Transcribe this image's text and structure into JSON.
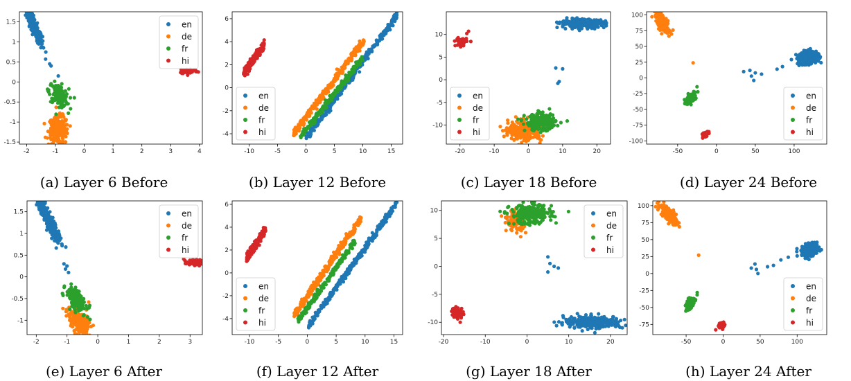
{
  "colors": {
    "en": "#1f77b4",
    "de": "#ff7f0e",
    "fr": "#2ca02c",
    "hi": "#d62728"
  },
  "chart_data": [
    {
      "type": "scatter",
      "title": "(a) Layer 6 Before",
      "xlim": [
        -2.25,
        4.1
      ],
      "ylim": [
        -1.55,
        1.75
      ],
      "xticks": [
        -2,
        -1,
        0,
        1,
        2,
        3,
        4
      ],
      "yticks": [
        -1.5,
        -1.0,
        -0.5,
        0.0,
        0.5,
        1.0,
        1.5
      ],
      "legend_position": "top-right",
      "legend": [
        "en",
        "de",
        "fr",
        "hi"
      ],
      "series": [
        {
          "name": "en",
          "clusters": [
            [
              -1.75,
              1.4,
              0.15,
              0.25,
              260,
              -0.9
            ]
          ],
          "points": [
            [
              -1.2,
              0.45
            ],
            [
              -1.15,
              0.4
            ],
            [
              -0.9,
              0.15
            ]
          ]
        },
        {
          "name": "de",
          "clusters": [
            [
              -0.9,
              -1.22,
              0.17,
              0.18,
              220,
              0
            ]
          ],
          "points": []
        },
        {
          "name": "fr",
          "clusters": [
            [
              -0.88,
              -0.32,
              0.17,
              0.14,
              130,
              -0.4
            ]
          ],
          "points": [
            [
              -0.55,
              -0.78
            ]
          ]
        },
        {
          "name": "hi",
          "clusters": [
            [
              3.62,
              0.27,
              0.16,
              0.035,
              60,
              0
            ]
          ],
          "points": []
        }
      ]
    },
    {
      "type": "scatter",
      "title": "(b) Layer 12 Before",
      "xlim": [
        -13,
        17
      ],
      "ylim": [
        -4.9,
        6.6
      ],
      "xticks": [
        -10,
        -5,
        0,
        5,
        10,
        15
      ],
      "yticks": [
        -4,
        -2,
        0,
        2,
        4,
        6
      ],
      "legend_position": "bottom-left",
      "legend": [
        "en",
        "de",
        "fr",
        "hi"
      ],
      "series": [
        {
          "name": "en",
          "lines": [
            [
              0,
              -4.4,
              16,
              6.3,
              0.15,
              320
            ]
          ],
          "points": []
        },
        {
          "name": "de",
          "lines": [
            [
              -2.2,
              -4.0,
              10.3,
              4.2,
              0.17,
              320
            ]
          ],
          "points": []
        },
        {
          "name": "fr",
          "lines": [
            [
              -1.0,
              -4.3,
              10.0,
              2.6,
              0.13,
              260
            ]
          ],
          "points": []
        },
        {
          "name": "hi",
          "lines": [
            [
              -11,
              1.2,
              -7.3,
              3.8,
              0.2,
              170
            ]
          ],
          "points": []
        }
      ]
    },
    {
      "type": "scatter",
      "title": "(c) Layer 18 Before",
      "xlim": [
        -24,
        24
      ],
      "ylim": [
        -14.2,
        15
      ],
      "xticks": [
        -20,
        -10,
        0,
        10,
        20
      ],
      "yticks": [
        -10,
        -5,
        0,
        5,
        10
      ],
      "legend_position": "bottom-left",
      "legend": [
        "en",
        "de",
        "fr",
        "hi"
      ],
      "series": [
        {
          "name": "en",
          "clusters": [
            [
              16,
              12.4,
              3.2,
              0.45,
              280,
              0.05
            ]
          ],
          "points": [
            [
              8,
              2.6
            ],
            [
              10,
              2.4
            ],
            [
              8.6,
              -0.8
            ],
            [
              9,
              -0.4
            ]
          ]
        },
        {
          "name": "de",
          "clusters": [
            [
              -1,
              -11.3,
              2.4,
              1.1,
              240,
              0
            ]
          ],
          "points": []
        },
        {
          "name": "fr",
          "clusters": [
            [
              3.5,
              -9.4,
              2.2,
              0.9,
              230,
              0
            ]
          ],
          "points": []
        },
        {
          "name": "hi",
          "clusters": [
            [
              -19.7,
              8.4,
              0.8,
              0.5,
              60,
              0
            ]
          ],
          "points": [
            [
              -17.5,
              10.7
            ],
            [
              -18,
              10.2
            ]
          ]
        }
      ]
    },
    {
      "type": "scatter",
      "title": "(d) Layer 24 Before",
      "xlim": [
        -90,
        142
      ],
      "ylim": [
        -105,
        105
      ],
      "xticks": [
        -50,
        0,
        50,
        100
      ],
      "yticks": [
        -100,
        -75,
        -50,
        -25,
        0,
        25,
        50,
        75,
        100
      ],
      "legend_position": "bottom-right",
      "legend": [
        "en",
        "de",
        "fr",
        "hi"
      ],
      "series": [
        {
          "name": "en",
          "clusters": [
            [
              118,
              32,
              7,
              5.5,
              240,
              0.25
            ]
          ],
          "points": [
            [
              35,
              10
            ],
            [
              43,
              12
            ],
            [
              50,
              8
            ],
            [
              58,
              6
            ],
            [
              45,
              3
            ],
            [
              48,
              -4
            ],
            [
              78,
              14
            ],
            [
              85,
              18
            ]
          ]
        },
        {
          "name": "de",
          "clusters": [
            [
              -69,
              85,
              4.5,
              8,
              170,
              -0.7
            ]
          ],
          "points": [
            [
              -56,
              76
            ],
            [
              -30,
              24
            ]
          ]
        },
        {
          "name": "fr",
          "clusters": [
            [
              -33,
              -32,
              3,
              4,
              100,
              0.4
            ]
          ],
          "points": [
            [
              -25,
              -14
            ],
            [
              -24,
              -22
            ]
          ]
        },
        {
          "name": "hi",
          "clusters": [
            [
              -15,
              -89,
              2,
              3,
              40,
              0.5
            ]
          ],
          "points": []
        }
      ]
    },
    {
      "type": "scatter",
      "title": "(e) Layer 6 After",
      "xlim": [
        -2.3,
        3.4
      ],
      "ylim": [
        -1.33,
        1.75
      ],
      "xticks": [
        -2,
        -1,
        0,
        1,
        2,
        3
      ],
      "yticks": [
        -1.0,
        -0.5,
        0.0,
        0.5,
        1.0,
        1.5
      ],
      "legend_position": "top-right",
      "legend": [
        "en",
        "de",
        "fr",
        "hi"
      ],
      "series": [
        {
          "name": "en",
          "clusters": [
            [
              -1.6,
              1.3,
              0.17,
              0.25,
              250,
              -0.9
            ]
          ],
          "points": [
            [
              -1.1,
              0.3
            ],
            [
              -1.0,
              0.25
            ],
            [
              -0.95,
              0.1
            ],
            [
              -1.05,
              0.18
            ],
            [
              -1.3,
              0.95
            ]
          ]
        },
        {
          "name": "de",
          "clusters": [
            [
              -0.62,
              -1.02,
              0.17,
              0.16,
              220,
              -0.5
            ]
          ],
          "points": []
        },
        {
          "name": "fr",
          "clusters": [
            [
              -0.7,
              -0.52,
              0.16,
              0.13,
              150,
              -0.5
            ]
          ],
          "points": [
            [
              -0.25,
              -0.98
            ]
          ]
        },
        {
          "name": "hi",
          "clusters": [
            [
              3.13,
              0.33,
              0.16,
              0.035,
              60,
              0
            ]
          ],
          "points": []
        }
      ]
    },
    {
      "type": "scatter",
      "title": "(f) Layer 12 After",
      "xlim": [
        -13,
        16.5
      ],
      "ylim": [
        -5.4,
        6.3
      ],
      "xticks": [
        -10,
        -5,
        0,
        5,
        10,
        15
      ],
      "yticks": [
        -4,
        -2,
        0,
        2,
        4,
        6
      ],
      "legend_position": "bottom-left",
      "legend": [
        "en",
        "de",
        "fr",
        "hi"
      ],
      "series": [
        {
          "name": "en",
          "lines": [
            [
              0,
              -4.8,
              15.5,
              6.1,
              0.15,
              320
            ]
          ],
          "points": []
        },
        {
          "name": "de",
          "lines": [
            [
              -2.3,
              -3.7,
              9.3,
              4.8,
              0.17,
              320
            ]
          ],
          "points": []
        },
        {
          "name": "fr",
          "lines": [
            [
              -1.6,
              -4.2,
              8.3,
              2.8,
              0.13,
              260
            ]
          ],
          "points": []
        },
        {
          "name": "hi",
          "lines": [
            [
              -10.5,
              1.3,
              -7.2,
              3.8,
              0.2,
              170
            ]
          ],
          "points": []
        }
      ]
    },
    {
      "type": "scatter",
      "title": "(g) Layer 18 After",
      "xlim": [
        -20.5,
        24
      ],
      "ylim": [
        -12.2,
        11.7
      ],
      "xticks": [
        -20,
        -10,
        0,
        10,
        20
      ],
      "yticks": [
        -10,
        -5,
        0,
        5,
        10
      ],
      "legend_position": "top-right",
      "legend": [
        "en",
        "de",
        "fr",
        "hi"
      ],
      "series": [
        {
          "name": "en",
          "clusters": [
            [
              16,
              -10,
              3.5,
              0.55,
              280,
              0
            ]
          ],
          "points": [
            [
              5,
              1.7
            ],
            [
              5.5,
              0.5
            ],
            [
              6.5,
              0
            ],
            [
              7.5,
              -0.3
            ],
            [
              5,
              -1
            ]
          ]
        },
        {
          "name": "de",
          "clusters": [
            [
              -2.5,
              8.2,
              1.2,
              0.9,
              140,
              0
            ]
          ],
          "points": [
            [
              -1.5,
              5.3
            ]
          ]
        },
        {
          "name": "fr",
          "clusters": [
            [
              1,
              9.4,
              2.5,
              0.9,
              240,
              0.1
            ]
          ],
          "points": []
        },
        {
          "name": "hi",
          "clusters": [
            [
              -16.7,
              -8.3,
              0.7,
              0.5,
              60,
              0
            ]
          ],
          "points": [
            [
              -16,
              -10
            ]
          ]
        }
      ]
    },
    {
      "type": "scatter",
      "title": "(h) Layer 24 After",
      "xlim": [
        -95,
        140
      ],
      "ylim": [
        -90,
        107
      ],
      "xticks": [
        -50,
        0,
        50,
        100
      ],
      "yticks": [
        -75,
        -50,
        -25,
        0,
        25,
        50,
        75,
        100
      ],
      "legend_position": "bottom-right",
      "legend": [
        "en",
        "de",
        "fr",
        "hi"
      ],
      "series": [
        {
          "name": "en",
          "clusters": [
            [
              118,
              34,
              6,
              4.5,
              230,
              0.2
            ]
          ],
          "points": [
            [
              38,
              8
            ],
            [
              43,
              14
            ],
            [
              45,
              6
            ],
            [
              47,
              0
            ],
            [
              60,
              10
            ],
            [
              68,
              12
            ],
            [
              78,
              20
            ],
            [
              88,
              24
            ],
            [
              100,
              26
            ]
          ]
        },
        {
          "name": "de",
          "clusters": [
            [
              -74,
              88,
              5.5,
              7,
              180,
              -0.7
            ]
          ],
          "points": [
            [
              -65,
              77
            ],
            [
              -33,
              27
            ]
          ]
        },
        {
          "name": "fr",
          "clusters": [
            [
              -45,
              -45,
              3,
              5,
              110,
              0.5
            ]
          ],
          "points": [
            [
              -35,
              -28
            ]
          ]
        },
        {
          "name": "hi",
          "clusters": [
            [
              -2,
              -76,
              2,
              2.5,
              40,
              0
            ]
          ],
          "points": [
            [
              -10,
              -83
            ]
          ]
        }
      ]
    }
  ]
}
